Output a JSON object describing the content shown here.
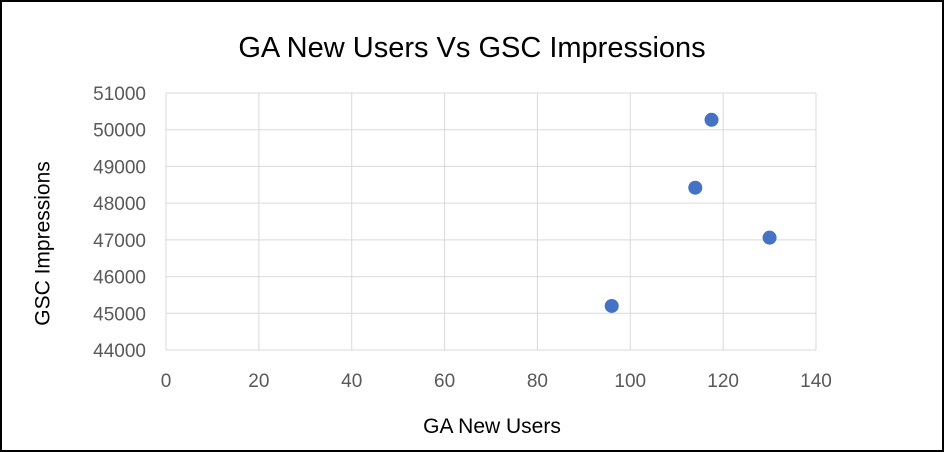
{
  "chart_data": {
    "type": "scatter",
    "title": "GA New Users Vs GSC Impressions",
    "xlabel": "GA New Users",
    "ylabel": "GSC Impressions",
    "xlim": [
      0,
      140
    ],
    "ylim": [
      44000,
      51000
    ],
    "x_ticks": [
      0,
      20,
      40,
      60,
      80,
      100,
      120,
      140
    ],
    "y_ticks": [
      44000,
      45000,
      46000,
      47000,
      48000,
      49000,
      50000,
      51000
    ],
    "grid": true,
    "legend": "none",
    "marker_color": "#4472C4",
    "grid_color": "#D9D9D9",
    "series": [
      {
        "x": [
          96,
          114,
          117.5,
          130
        ],
        "y": [
          45200,
          48420,
          50270,
          47060
        ]
      }
    ]
  }
}
